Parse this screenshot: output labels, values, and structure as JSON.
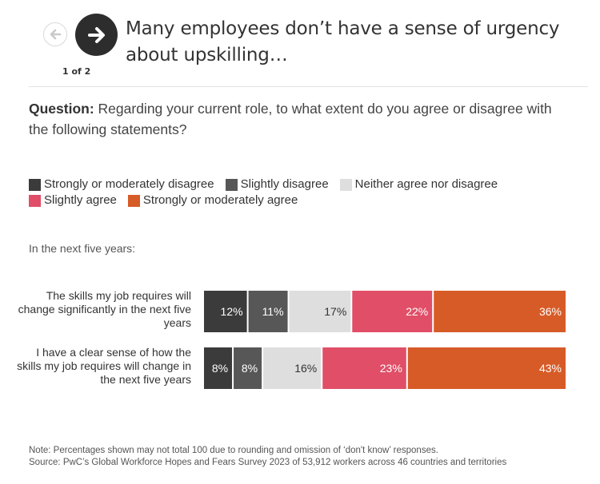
{
  "nav": {
    "prev_icon": "arrow-left-icon",
    "next_icon": "arrow-right-icon",
    "pager": "1 of 2"
  },
  "header": {
    "title": "Many employees don’t have a sense of urgency about upskilling…"
  },
  "question": {
    "label": "Question:",
    "text": " Regarding your current role, to what extent do you agree or disagree with the following statements?"
  },
  "subhead": "In the next five years:",
  "note": {
    "line1": "Note: Percentages shown may not total 100 due to rounding and omission of ‘don't know’ responses.",
    "line2": "Source: PwC’s Global Workforce Hopes and Fears Survey 2023 of 53,912 workers across 46 countries and territories"
  },
  "chart_data": {
    "type": "bar",
    "orientation": "horizontal-stacked",
    "title": "Many employees don’t have a sense of urgency about upskilling…",
    "subtitle": "In the next five years:",
    "xlabel": "",
    "ylabel": "",
    "legend_position": "top",
    "grid": false,
    "unit": "%",
    "categories": [
      "The skills my job requires will change significantly in the next five years",
      "I have a clear sense of how the skills my job requires will change in the next five years"
    ],
    "series": [
      {
        "name": "Strongly or moderately disagree",
        "color": "#3b3b3b",
        "label_color": "#ffffff",
        "values": [
          12,
          8
        ]
      },
      {
        "name": "Slightly disagree",
        "color": "#575757",
        "label_color": "#ffffff",
        "values": [
          11,
          8
        ]
      },
      {
        "name": "Neither agree nor disagree",
        "color": "#dedede",
        "label_color": "#333333",
        "values": [
          17,
          16
        ]
      },
      {
        "name": "Slightly agree",
        "color": "#e04e67",
        "label_color": "#ffffff",
        "values": [
          22,
          23
        ]
      },
      {
        "name": "Strongly or moderately agree",
        "color": "#d75b27",
        "label_color": "#ffffff",
        "values": [
          36,
          43
        ]
      }
    ],
    "legend_rows": [
      [
        0,
        1,
        2
      ],
      [
        3,
        4
      ]
    ]
  }
}
